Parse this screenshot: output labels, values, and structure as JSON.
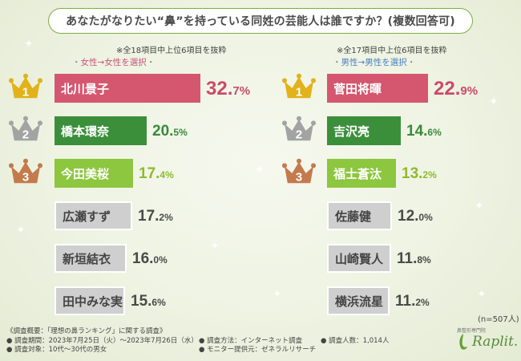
{
  "title": "あなたがなりたい“鼻”を持っている同姓の芸能人は誰ですか？(複数回答可)",
  "left_panel": {
    "note": "※全18項目中上位6項目を抜粋",
    "filter": "女性→女性を選択",
    "rows": [
      {
        "rank": "1",
        "name": "北川景子",
        "int": "32.",
        "dec": "7%"
      },
      {
        "rank": "2",
        "name": "橋本環奈",
        "int": "20.",
        "dec": "5%"
      },
      {
        "rank": "3",
        "name": "今田美桜",
        "int": "17.",
        "dec": "4%"
      },
      {
        "rank": "",
        "name": "広瀬すず",
        "int": "17.",
        "dec": "2%"
      },
      {
        "rank": "",
        "name": "新垣結衣",
        "int": "16.",
        "dec": "0%"
      },
      {
        "rank": "",
        "name": "田中みな実",
        "int": "15.",
        "dec": "6%"
      }
    ]
  },
  "right_panel": {
    "note": "※全17項目中上位6項目を抜粋",
    "filter": "男性→男性を選択",
    "rows": [
      {
        "rank": "1",
        "name": "菅田将暉",
        "int": "22.",
        "dec": "9%"
      },
      {
        "rank": "2",
        "name": "吉沢亮",
        "int": "14.",
        "dec": "6%"
      },
      {
        "rank": "3",
        "name": "福士蒼汰",
        "int": "13.",
        "dec": "2%"
      },
      {
        "rank": "",
        "name": "佐藤健",
        "int": "12.",
        "dec": "0%"
      },
      {
        "rank": "",
        "name": "山崎賢人",
        "int": "11.",
        "dec": "8%"
      },
      {
        "rank": "",
        "name": "横浜流星",
        "int": "11.",
        "dec": "2%"
      }
    ]
  },
  "sample": "(n=507人)",
  "footer": {
    "survey_overview": "《調査概要：「理想の鼻ランキング」に関する調査》",
    "period": "● 調査期間：2023年7月25日（火）〜2023年7月26日（水）",
    "target": "● 調査対象：10代〜30代の男女",
    "method": "● 調査方法：インターネット調査",
    "monitor": "● モニター提供元：ゼネラルリサーチ",
    "count": "● 調査人数：1,014人"
  },
  "logo": {
    "tagline": "鼻整形専門院",
    "name": "Raplit."
  },
  "colors": {
    "rank1": "#d5576f",
    "rank2": "#3b8f3b",
    "rank3": "#8dc63f",
    "other": "#cfcfcf",
    "gold": "#e1b21a",
    "silver": "#a3a3a3",
    "bronze": "#c47a4c"
  },
  "chart_data": [
    {
      "type": "bar",
      "title": "女性→女性を選択",
      "categories": [
        "北川景子",
        "橋本環奈",
        "今田美桜",
        "広瀬すず",
        "新垣結衣",
        "田中みな実"
      ],
      "values": [
        32.7,
        20.5,
        17.4,
        17.2,
        16.0,
        15.6
      ],
      "unit": "%"
    },
    {
      "type": "bar",
      "title": "男性→男性を選択",
      "categories": [
        "菅田将暉",
        "吉沢亮",
        "福士蒼汰",
        "佐藤健",
        "山崎賢人",
        "横浜流星"
      ],
      "values": [
        22.9,
        14.6,
        13.2,
        12.0,
        11.8,
        11.2
      ],
      "unit": "%"
    }
  ]
}
